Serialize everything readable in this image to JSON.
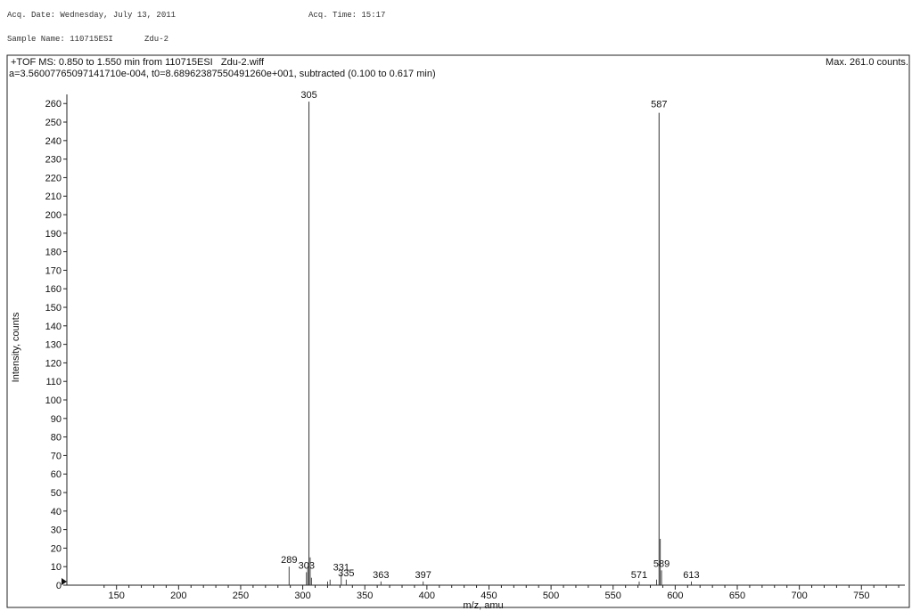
{
  "header": {
    "acq_date": "Acq. Date: Wednesday, July 13, 2011",
    "acq_time": "Acq. Time: 15:17",
    "sample_name": "Sample Name: 110715ESI",
    "sample_id": "Zdu-2"
  },
  "panel": {
    "title_line1": "+TOF MS: 0.850 to 1.550 min from 110715ESI   Zdu-2.wiff",
    "title_line2": "a=3.56007765097141710e-004, t0=8.68962387550491260e+001, subtracted (0.100 to 0.617 min)",
    "max_label": "Max. 261.0 counts."
  },
  "chart_data": {
    "type": "bar",
    "xlabel": "m/z, amu",
    "ylabel": "Intensity, counts",
    "xlim": [
      110,
      785
    ],
    "ylim": [
      0,
      263
    ],
    "xticks": [
      150,
      200,
      250,
      300,
      350,
      400,
      450,
      500,
      550,
      600,
      650,
      700,
      750
    ],
    "yticks": [
      0,
      10,
      20,
      30,
      40,
      50,
      60,
      70,
      80,
      90,
      100,
      110,
      120,
      130,
      140,
      150,
      160,
      170,
      180,
      190,
      200,
      210,
      220,
      230,
      240,
      250,
      260
    ],
    "peaks": [
      {
        "x": 289,
        "y": 10,
        "label": "289"
      },
      {
        "x": 303,
        "y": 7,
        "label": "303"
      },
      {
        "x": 304,
        "y": 10,
        "label": ""
      },
      {
        "x": 305,
        "y": 261,
        "label": "305"
      },
      {
        "x": 306,
        "y": 15,
        "label": ""
      },
      {
        "x": 307,
        "y": 4,
        "label": ""
      },
      {
        "x": 320,
        "y": 2,
        "label": ""
      },
      {
        "x": 322,
        "y": 3,
        "label": ""
      },
      {
        "x": 331,
        "y": 6,
        "label": "331"
      },
      {
        "x": 335,
        "y": 3,
        "label": "335"
      },
      {
        "x": 363,
        "y": 2,
        "label": "363"
      },
      {
        "x": 397,
        "y": 2,
        "label": "397"
      },
      {
        "x": 571,
        "y": 2,
        "label": "571"
      },
      {
        "x": 585,
        "y": 3,
        "label": ""
      },
      {
        "x": 587,
        "y": 255,
        "label": "587"
      },
      {
        "x": 588,
        "y": 25,
        "label": ""
      },
      {
        "x": 589,
        "y": 8,
        "label": "589"
      },
      {
        "x": 613,
        "y": 2,
        "label": "613"
      }
    ],
    "grid": false,
    "legend": "none"
  }
}
